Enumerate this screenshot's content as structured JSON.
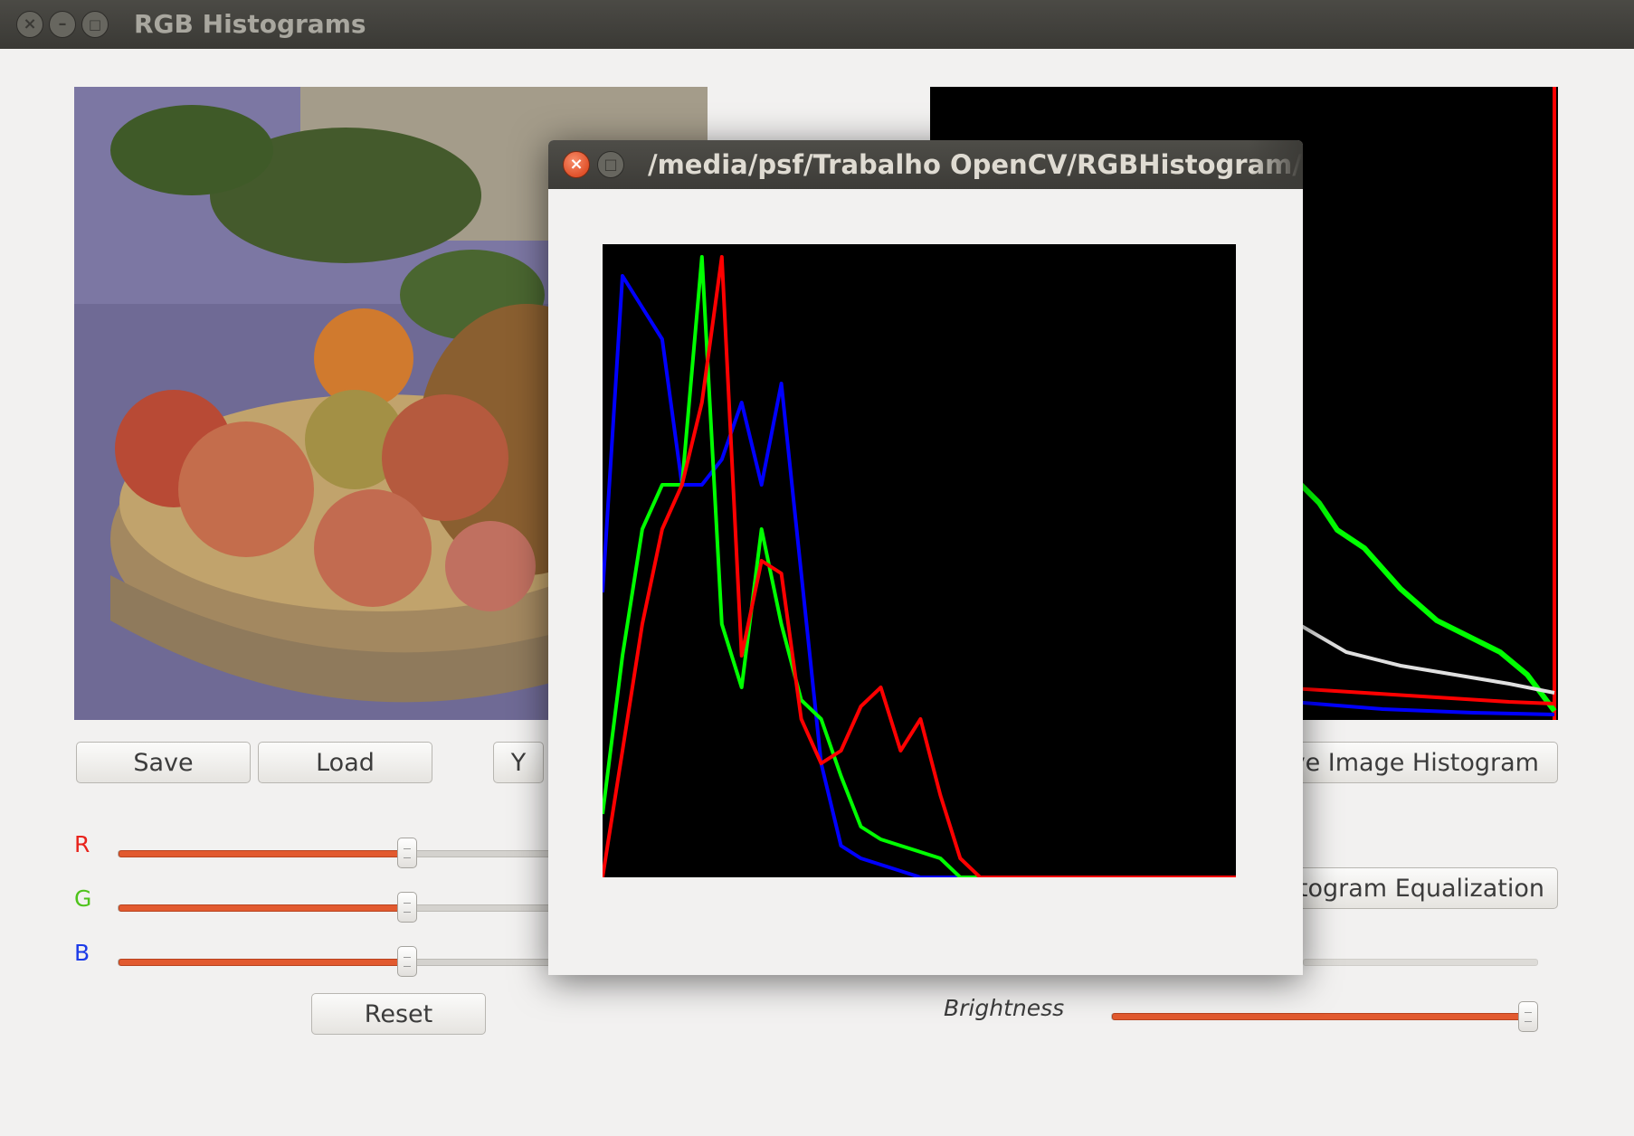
{
  "main_window": {
    "title": "RGB Histograms",
    "close_icon": "×",
    "minimize_icon": "–",
    "maximize_icon": "□"
  },
  "buttons": {
    "save": "Save",
    "load": "Load",
    "y": "Y",
    "save_hist": "ve Image Histogram",
    "hist_eq": "togram Equalization",
    "reset": "Reset"
  },
  "sliders": {
    "r_label": "R",
    "g_label": "G",
    "b_label": "B",
    "r_value": 0.5,
    "g_value": 0.5,
    "b_value": 0.5,
    "brightness_label": "Brightness",
    "brightness_value": 0.98
  },
  "colors": {
    "red": "#ff0000",
    "green": "#00ff00",
    "blue": "#0000ff",
    "accent": "#e25a2f",
    "label_r": "#e8231c",
    "label_g": "#4fc31c",
    "label_b": "#1c3be8"
  },
  "popup": {
    "title": "/media/psf/Trabalho OpenCV/RGBHistogram/histogram",
    "close_icon": "×",
    "maximize_icon": "□"
  },
  "chart_data": {
    "type": "line",
    "x": [
      0,
      8,
      16,
      24,
      32,
      40,
      48,
      56,
      64,
      72,
      80,
      88,
      96,
      104,
      112,
      120,
      128,
      136,
      144,
      152,
      160,
      168,
      176,
      184,
      192,
      200,
      208,
      216,
      224,
      232,
      240,
      248,
      255
    ],
    "xlim": [
      0,
      255
    ],
    "ylim": [
      0,
      1
    ],
    "series": [
      {
        "color": "blue",
        "values": [
          0.45,
          0.95,
          0.9,
          0.85,
          0.62,
          0.62,
          0.66,
          0.75,
          0.62,
          0.78,
          0.48,
          0.18,
          0.05,
          0.03,
          0.02,
          0.01,
          0.0,
          0.0,
          0.0,
          0.0,
          0.0,
          0.0,
          0.0,
          0.0,
          0.0,
          0.0,
          0.0,
          0.0,
          0.0,
          0.0,
          0.0,
          0.0,
          0.0
        ]
      },
      {
        "color": "green",
        "values": [
          0.1,
          0.35,
          0.55,
          0.62,
          0.62,
          0.98,
          0.4,
          0.3,
          0.55,
          0.4,
          0.28,
          0.25,
          0.16,
          0.08,
          0.06,
          0.05,
          0.04,
          0.03,
          0.0,
          0.0,
          0.0,
          0.0,
          0.0,
          0.0,
          0.0,
          0.0,
          0.0,
          0.0,
          0.0,
          0.0,
          0.0,
          0.0,
          0.0
        ]
      },
      {
        "color": "red",
        "values": [
          0.0,
          0.2,
          0.4,
          0.55,
          0.62,
          0.75,
          0.98,
          0.35,
          0.5,
          0.48,
          0.25,
          0.18,
          0.2,
          0.27,
          0.3,
          0.2,
          0.25,
          0.13,
          0.03,
          0.0,
          0.0,
          0.0,
          0.0,
          0.0,
          0.0,
          0.0,
          0.0,
          0.0,
          0.0,
          0.0,
          0.0,
          0.0,
          0.0
        ]
      }
    ]
  }
}
